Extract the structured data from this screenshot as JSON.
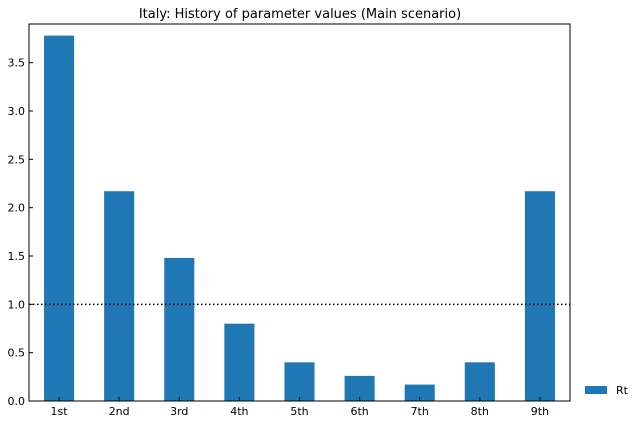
{
  "chart_data": {
    "type": "bar",
    "title": "Italy: History of parameter values (Main scenario)",
    "xlabel": "",
    "ylabel": "",
    "categories": [
      "1st",
      "2nd",
      "3rd",
      "4th",
      "5th",
      "6th",
      "7th",
      "8th",
      "9th"
    ],
    "series": [
      {
        "name": "Rt",
        "values": [
          3.78,
          2.17,
          1.48,
          0.8,
          0.4,
          0.26,
          0.17,
          0.4,
          2.17
        ],
        "color": "#1f77b4"
      }
    ],
    "ylim": [
      0,
      3.9
    ],
    "yticks": [
      0.0,
      0.5,
      1.0,
      1.5,
      2.0,
      2.5,
      3.0,
      3.5
    ],
    "ytick_labels": [
      "0.0",
      "0.5",
      "1.0",
      "1.5",
      "2.0",
      "2.5",
      "3.0",
      "3.5"
    ],
    "reference_line": {
      "y": 1.0,
      "style": "dotted",
      "color": "#000000"
    },
    "grid": false,
    "legend_position": "bottom-right-outside"
  }
}
